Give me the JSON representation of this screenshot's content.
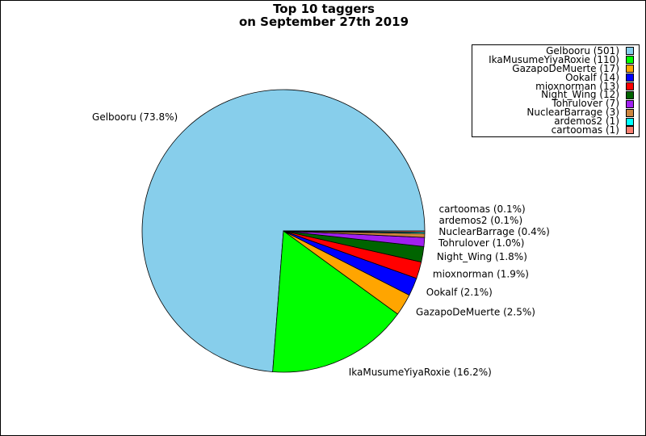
{
  "chart_data": {
    "type": "pie",
    "title": "Top 10 taggers",
    "subtitle": "on September 27th 2019",
    "start_angle_deg": 0,
    "direction": "counterclockwise",
    "legend_placement": "top-right",
    "slices": [
      {
        "name": "Gelbooru",
        "value": 501,
        "percent": "73.8%",
        "color": "#87ceeb"
      },
      {
        "name": "IkaMusumeYiyaRoxie",
        "value": 110,
        "percent": "16.2%",
        "color": "#00ff00"
      },
      {
        "name": "GazapoDeMuerte",
        "value": 17,
        "percent": "2.5%",
        "color": "#ffa500"
      },
      {
        "name": "Ookalf",
        "value": 14,
        "percent": "2.1%",
        "color": "#0000ff"
      },
      {
        "name": "mioxnorman",
        "value": 13,
        "percent": "1.9%",
        "color": "#ff0000"
      },
      {
        "name": "Night_Wing",
        "value": 12,
        "percent": "1.8%",
        "color": "#006400"
      },
      {
        "name": "Tohrulover",
        "value": 7,
        "percent": "1.0%",
        "color": "#a020f0"
      },
      {
        "name": "NuclearBarrage",
        "value": 3,
        "percent": "0.4%",
        "color": "#cd853f"
      },
      {
        "name": "ardemos2",
        "value": 1,
        "percent": "0.1%",
        "color": "#00ffff"
      },
      {
        "name": "cartoomas",
        "value": 1,
        "percent": "0.1%",
        "color": "#fa8072"
      }
    ]
  }
}
